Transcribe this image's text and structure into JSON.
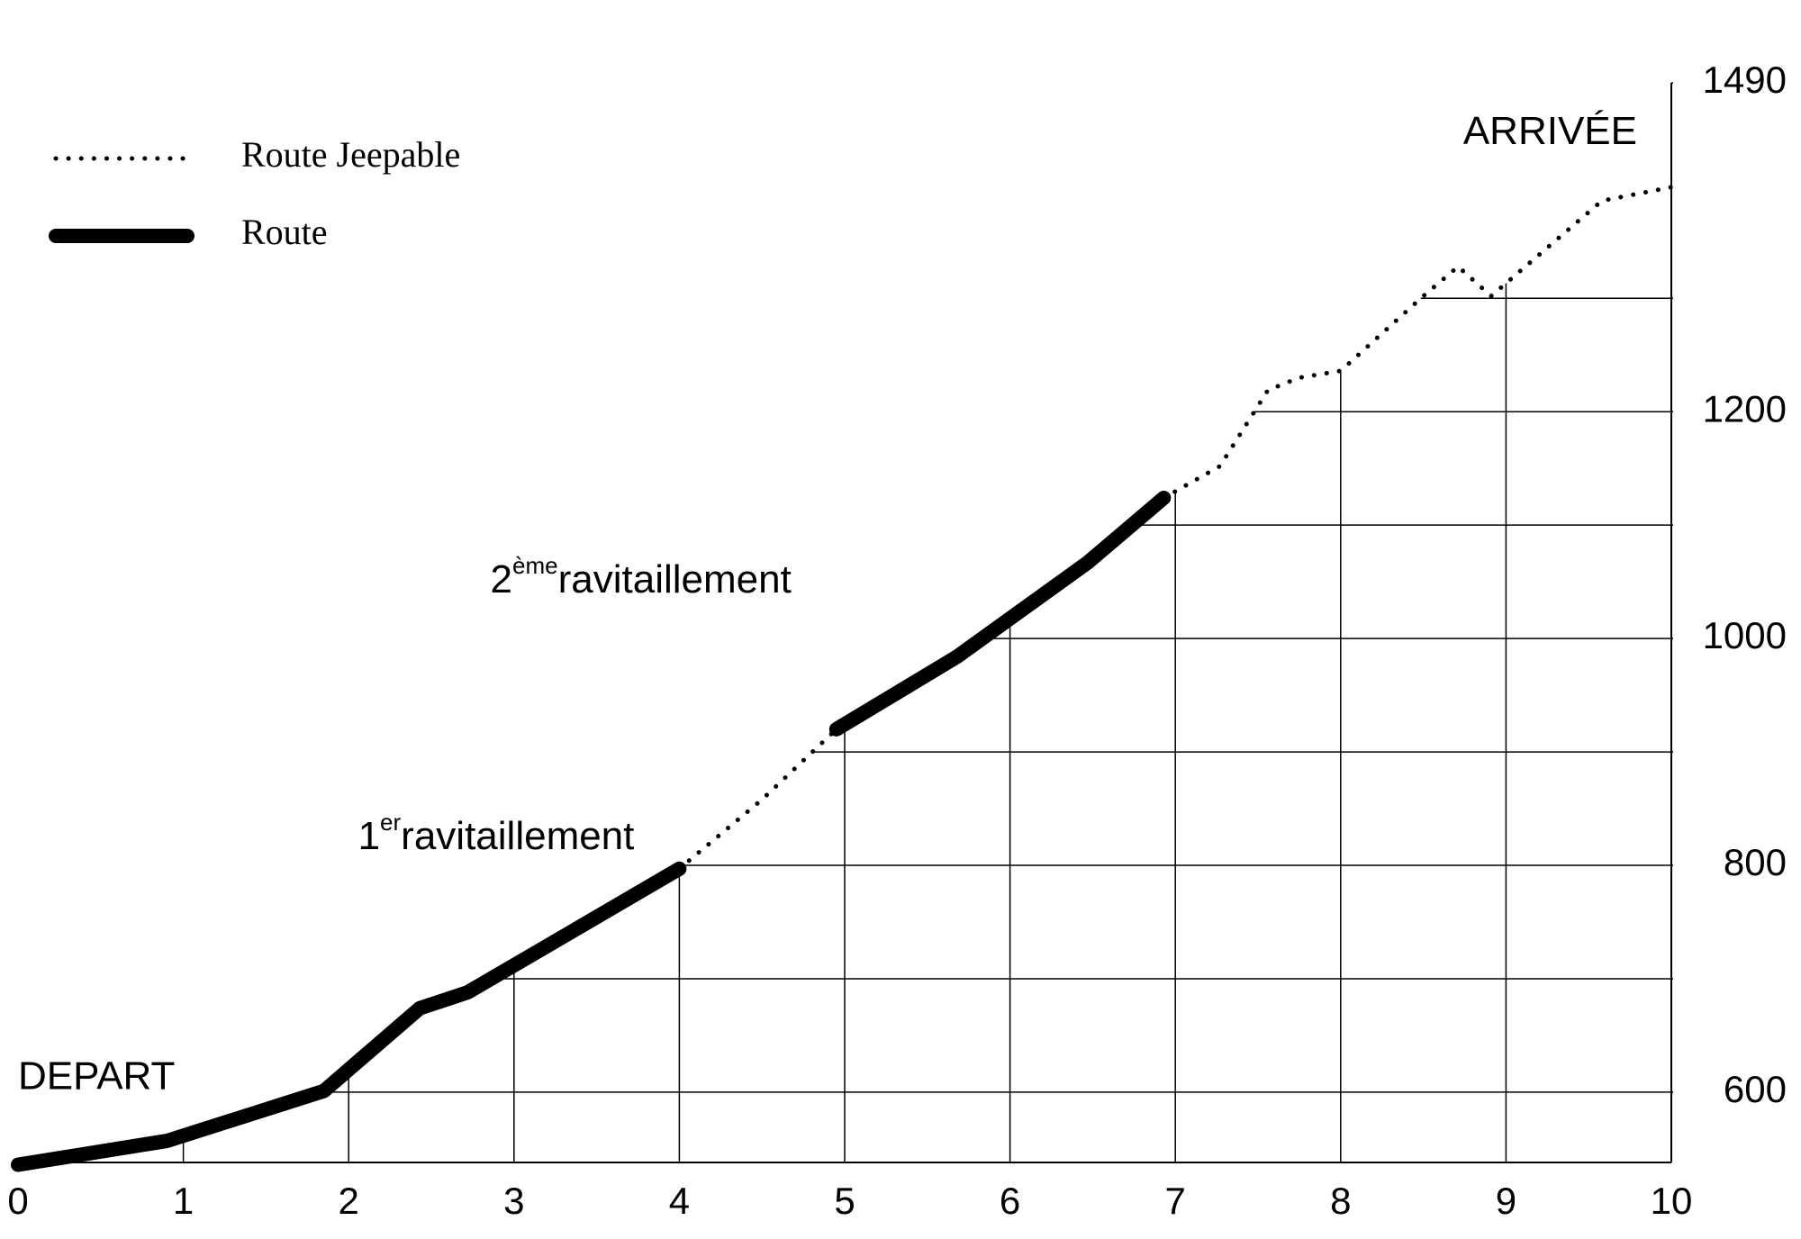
{
  "chart_data": {
    "type": "line",
    "x": [
      0,
      0.9,
      1.85,
      2.43,
      2.72,
      4,
      4.5,
      4.95,
      5.68,
      6.47,
      6.93,
      7.27,
      7.56,
      7.75,
      8,
      8.5,
      8.71,
      8.91,
      9.58,
      10
    ],
    "series": [
      {
        "name": "Route Jeepable",
        "color": "#000000",
        "style": "dotted",
        "values": [
          null,
          null,
          null,
          null,
          null,
          797,
          858,
          920,
          null,
          null,
          1124,
          1152,
          1219,
          1230,
          1236,
          1302,
          1328,
          1302,
          1386,
          1398
        ]
      },
      {
        "name": "Route",
        "color": "#000000",
        "style": "solid",
        "values": [
          536,
          557,
          601,
          674,
          688,
          797,
          null,
          920,
          984,
          1067,
          1124,
          null,
          null,
          null,
          null,
          null,
          null,
          null,
          null,
          null
        ]
      }
    ],
    "xlim": [
      0,
      10
    ],
    "xticks": [
      0,
      1,
      2,
      3,
      4,
      5,
      6,
      7,
      8,
      9,
      10
    ],
    "ylim": [
      538,
      1490
    ],
    "yticks": [
      600,
      800,
      1000,
      1200,
      1490
    ],
    "minor_yticks": [
      700,
      900,
      1100,
      1300
    ],
    "y_axis_side": "right",
    "grid": true,
    "legend": "upper left",
    "annotations": [
      {
        "text": "DEPART",
        "x": 0,
        "y": 536
      },
      {
        "base": "1",
        "sup": "er",
        "text": "ravitaillement",
        "x": 4,
        "y": 797
      },
      {
        "base": "2",
        "sup": "ème",
        "text": "ravitaillement",
        "x": 4.95,
        "y": 920
      },
      {
        "text": "ARRIVÉE",
        "x": 10,
        "y": 1398
      }
    ]
  }
}
